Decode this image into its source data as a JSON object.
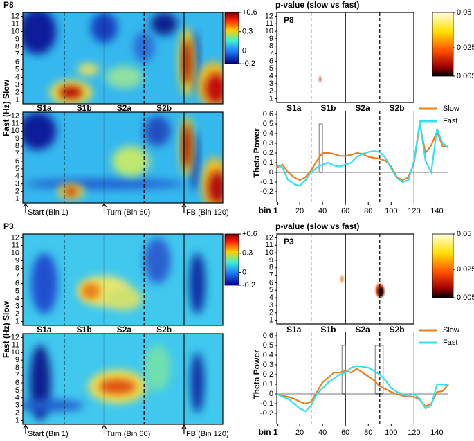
{
  "chart_data": [
    {
      "type": "heatmap",
      "title": "P8",
      "ylim": [
        0.5,
        12.5
      ],
      "yticks": [
        1,
        2,
        3,
        4,
        5,
        6,
        7,
        8,
        9,
        10,
        11,
        12
      ],
      "colorbar": {
        "lim": [
          -0.2,
          0.6
        ],
        "ticks": [
          {
            "value": 0.6,
            "label": "+0.6"
          },
          0.3,
          0,
          -0.2
        ]
      }
    },
    {
      "type": "heatmap",
      "ylabel": "Fast (Hz) Slow",
      "ylim": [
        0.5,
        12.5
      ],
      "yticks": [
        1,
        2,
        3,
        4,
        5,
        6,
        7,
        8,
        9,
        10,
        11,
        12
      ],
      "sections": [
        "S1a",
        "S1b",
        "S2a",
        "S2b"
      ],
      "events": [
        {
          "bin": 1,
          "label": "Start (Bin 1)"
        },
        {
          "bin": 60,
          "label": "Turn (Bin 60)"
        },
        {
          "bin": 120,
          "label": "FB (Bin 120)"
        }
      ]
    },
    {
      "type": "heatmap",
      "title": "p-value (slow vs fast)",
      "label": "P8",
      "ylim": [
        0.5,
        12.5
      ],
      "yticks": [
        1,
        2,
        3,
        4,
        5,
        6,
        7,
        8,
        9,
        10,
        11,
        12
      ],
      "colorbar": {
        "lim": [
          0.005,
          0.05
        ],
        "ticks": [
          0.05,
          0.025,
          0.005
        ]
      }
    },
    {
      "type": "line",
      "ylabel": "Theta Power",
      "sections": [
        "S1a",
        "S1b",
        "S2a",
        "S2b"
      ],
      "legend": "upper right",
      "x": [
        0,
        5,
        10,
        15,
        20,
        25,
        30,
        35,
        40,
        45,
        50,
        55,
        60,
        65,
        70,
        75,
        80,
        85,
        90,
        95,
        100,
        105,
        110,
        115,
        120,
        125,
        130,
        135,
        140,
        145,
        150
      ],
      "xlim": [
        0,
        150
      ],
      "xticks": [
        {
          "value": 1,
          "label": "bin 1"
        },
        20,
        40,
        60,
        80,
        100,
        120,
        140
      ],
      "ylim": [
        -0.2,
        0.6
      ],
      "yticks": [
        -0.2,
        -0.1,
        0,
        0.1,
        0.2,
        0.3,
        0.4,
        0.5,
        0.6
      ],
      "series": [
        {
          "name": "Slow",
          "color": "#f07f1a",
          "values": [
            0.05,
            0.08,
            0.0,
            -0.05,
            -0.08,
            -0.05,
            0.02,
            0.12,
            0.2,
            0.2,
            0.19,
            0.17,
            0.17,
            0.18,
            0.2,
            0.19,
            0.16,
            0.15,
            0.14,
            0.12,
            0.06,
            -0.05,
            -0.08,
            -0.05,
            0.1,
            0.5,
            0.2,
            0.28,
            0.42,
            0.27,
            0.26
          ]
        },
        {
          "name": "Fast",
          "color": "#33e0f0",
          "values": [
            0.08,
            0.05,
            -0.08,
            -0.12,
            -0.14,
            -0.08,
            0.0,
            0.05,
            0.08,
            0.1,
            0.07,
            0.06,
            0.08,
            0.1,
            0.16,
            0.19,
            0.21,
            0.22,
            0.21,
            0.15,
            0.04,
            -0.06,
            -0.1,
            -0.08,
            0.12,
            0.52,
            0.12,
            0.0,
            0.45,
            0.3,
            0.26
          ]
        },
        {
          "color": "#777777",
          "x": [
            0,
            37,
            37,
            40,
            40,
            150
          ],
          "values": [
            0,
            0,
            0.5,
            0.5,
            0,
            0
          ]
        }
      ]
    },
    {
      "type": "heatmap",
      "title": "P3",
      "ylim": [
        0.5,
        12.5
      ],
      "yticks": [
        1,
        2,
        3,
        4,
        5,
        6,
        7,
        8,
        9,
        10,
        11,
        12
      ],
      "colorbar": {
        "lim": [
          -0.2,
          0.6
        ],
        "ticks": [
          {
            "value": 0.6,
            "label": "+0.6"
          },
          0.3,
          0,
          -0.2
        ]
      }
    },
    {
      "type": "heatmap",
      "ylabel": "Fast (Hz) Slow",
      "ylim": [
        0.5,
        12.5
      ],
      "yticks": [
        1,
        2,
        3,
        4,
        5,
        6,
        7,
        8,
        9,
        10,
        11,
        12
      ],
      "sections": [
        "S1a",
        "S1b",
        "S2a",
        "S2b"
      ],
      "events": [
        {
          "bin": 1,
          "label": "Start (Bin 1)"
        },
        {
          "bin": 60,
          "label": "Turn (Bin 60)"
        },
        {
          "bin": 120,
          "label": "FB (Bin 120)"
        }
      ]
    },
    {
      "type": "heatmap",
      "title": "p-value (slow vs fast)",
      "label": "P3",
      "ylim": [
        0.5,
        12.5
      ],
      "yticks": [
        1,
        2,
        3,
        4,
        5,
        6,
        7,
        8,
        9,
        10,
        11,
        12
      ],
      "colorbar": {
        "lim": [
          0.005,
          0.05
        ],
        "ticks": [
          0.05,
          0.025,
          0.005
        ]
      }
    },
    {
      "type": "line",
      "ylabel": "Theta Power",
      "sections": [
        "S1a",
        "S1b",
        "S2a",
        "S2b"
      ],
      "legend": "upper right",
      "x": [
        0,
        5,
        10,
        15,
        20,
        25,
        30,
        35,
        40,
        45,
        50,
        55,
        60,
        65,
        70,
        75,
        80,
        85,
        90,
        95,
        100,
        105,
        110,
        115,
        120,
        125,
        130,
        135,
        140,
        145,
        150
      ],
      "xlim": [
        0,
        150
      ],
      "xticks": [
        {
          "value": 1,
          "label": "bin 1"
        },
        20,
        40,
        60,
        80,
        100,
        120,
        140
      ],
      "ylim": [
        -0.2,
        0.6
      ],
      "yticks": [
        -0.2,
        -0.1,
        0,
        0.1,
        0.2,
        0.3,
        0.4,
        0.5,
        0.6
      ],
      "series": [
        {
          "name": "Slow",
          "color": "#f07f1a",
          "values": [
            0.0,
            -0.02,
            -0.03,
            -0.05,
            -0.08,
            -0.1,
            -0.08,
            0.02,
            0.12,
            0.17,
            0.22,
            0.22,
            0.24,
            0.22,
            0.26,
            0.22,
            0.18,
            0.14,
            0.08,
            0.05,
            0.02,
            0.0,
            -0.02,
            -0.03,
            -0.03,
            -0.06,
            -0.13,
            -0.1,
            0.02,
            0.03,
            0.1
          ]
        },
        {
          "name": "Fast",
          "color": "#33e0f0",
          "values": [
            0.0,
            -0.03,
            -0.05,
            -0.1,
            -0.15,
            -0.18,
            -0.12,
            0.0,
            0.06,
            0.12,
            0.16,
            0.2,
            0.22,
            0.27,
            0.29,
            0.28,
            0.27,
            0.24,
            0.2,
            0.14,
            0.06,
            0.02,
            0.0,
            -0.02,
            0.0,
            -0.05,
            -0.15,
            -0.12,
            0.1,
            0.1,
            0.09
          ]
        },
        {
          "color": "#777777",
          "x": [
            0,
            57,
            57,
            60,
            60,
            86,
            86,
            93,
            93,
            150
          ],
          "values": [
            0,
            0,
            0.5,
            0.5,
            0,
            0,
            0.5,
            0.5,
            0,
            0
          ]
        }
      ]
    }
  ]
}
